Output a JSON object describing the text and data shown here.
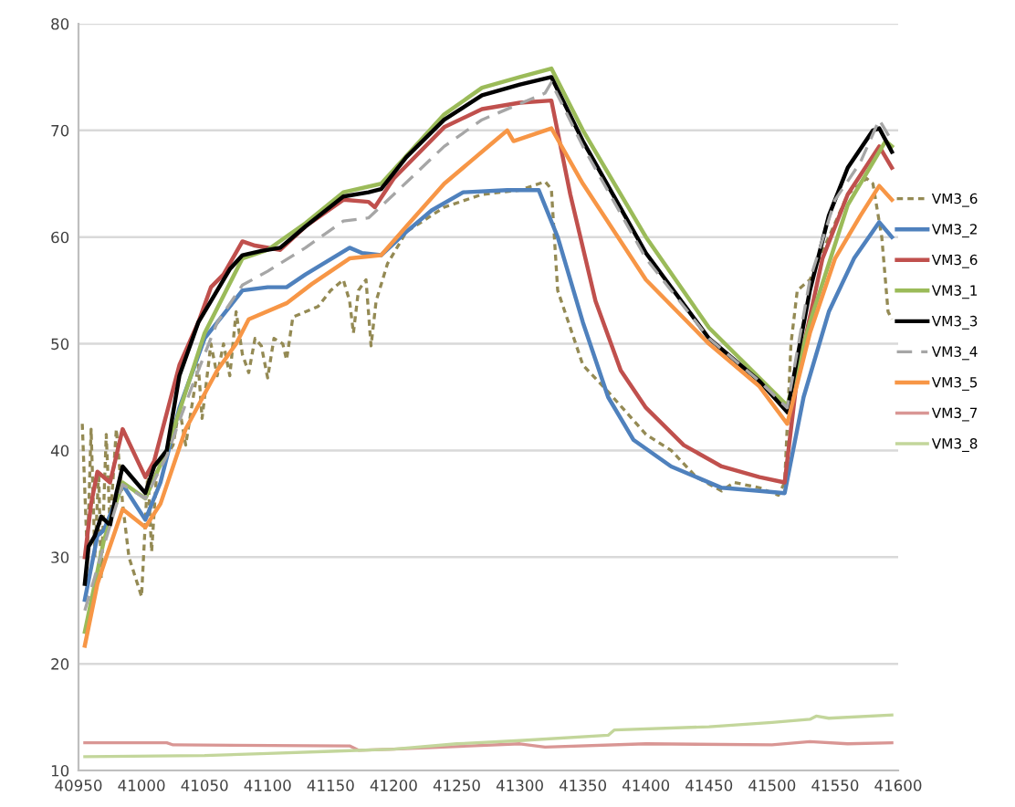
{
  "chart_data": {
    "type": "line",
    "xlim": [
      40950,
      41600
    ],
    "xticks": [
      40950,
      41000,
      41050,
      41100,
      41150,
      41200,
      41250,
      41300,
      41350,
      41400,
      41450,
      41500,
      41550,
      41600
    ],
    "ylim": [
      10,
      80
    ],
    "yticks": [
      10,
      20,
      30,
      40,
      50,
      60,
      70,
      80
    ],
    "grid": "y",
    "legend": "right",
    "marker": "none",
    "series": [
      {
        "name": "VM3_6",
        "color": "#948a54",
        "line_style": "dotted",
        "x": [
          40953,
          40957,
          40960,
          40963,
          40966,
          40968,
          40972,
          40975,
          40980,
          40985,
          40990,
          41000,
          41005,
          41008,
          41012,
          41025,
          41030,
          41035,
          41045,
          41048,
          41055,
          41060,
          41065,
          41070,
          41075,
          41080,
          41085,
          41090,
          41095,
          41100,
          41105,
          41112,
          41115,
          41120,
          41130,
          41140,
          41150,
          41160,
          41165,
          41168,
          41172,
          41178,
          41182,
          41186,
          41195,
          41210,
          41240,
          41270,
          41300,
          41320,
          41325,
          41330,
          41350,
          41370,
          41400,
          41420,
          41440,
          41460,
          41470,
          41490,
          41505,
          41510,
          41515,
          41520,
          41530,
          41545,
          41560,
          41575,
          41580,
          41587,
          41592,
          41595
        ],
        "values": [
          42.5,
          30,
          42,
          30,
          38,
          28,
          41.5,
          33,
          42,
          35,
          30,
          26.3,
          38,
          30.5,
          38,
          40.5,
          44,
          40.5,
          48,
          43,
          50,
          47,
          50,
          47,
          53,
          49,
          47.3,
          50.5,
          49.8,
          46.8,
          50.5,
          50,
          48.5,
          52.5,
          53,
          53.5,
          55,
          56,
          54,
          51,
          55,
          56,
          49.8,
          54,
          57.5,
          60.5,
          62.8,
          64,
          64.4,
          65.2,
          64.5,
          55,
          48,
          45.5,
          41.5,
          40,
          37.5,
          36.2,
          37,
          36.5,
          35.8,
          37,
          50,
          55,
          56,
          60,
          64,
          65.5,
          65,
          60,
          53,
          52.3
        ]
      },
      {
        "name": "VM3_2",
        "color": "#4f81bd",
        "x": [
          40955,
          40965,
          40970,
          40985,
          41003,
          41015,
          41030,
          41050,
          41060,
          41080,
          41100,
          41115,
          41130,
          41165,
          41175,
          41190,
          41210,
          41230,
          41255,
          41290,
          41315,
          41330,
          41350,
          41370,
          41390,
          41420,
          41460,
          41490,
          41510,
          41525,
          41545,
          41565,
          41585,
          41595
        ],
        "values": [
          26,
          32,
          32.5,
          36.8,
          33.5,
          37,
          44,
          50.5,
          52,
          55,
          55.3,
          55.3,
          56.5,
          59,
          58.5,
          58.3,
          60.5,
          62.5,
          64.2,
          64.4,
          64.4,
          60,
          52,
          45,
          41,
          38.5,
          36.5,
          36.2,
          36,
          45,
          53,
          58,
          61.4,
          60
        ]
      },
      {
        "name": "VM3_6",
        "color": "#c0504d",
        "x": [
          40955,
          40960,
          40965,
          40975,
          40985,
          41003,
          41010,
          41030,
          41045,
          41055,
          41065,
          41080,
          41090,
          41110,
          41130,
          41160,
          41180,
          41185,
          41200,
          41240,
          41270,
          41300,
          41325,
          41340,
          41360,
          41380,
          41400,
          41430,
          41460,
          41490,
          41510,
          41520,
          41540,
          41560,
          41585,
          41595
        ],
        "values": [
          30,
          35,
          38,
          37,
          42,
          37.5,
          39,
          48,
          52,
          55.3,
          56.5,
          59.6,
          59.2,
          58.8,
          61,
          63.5,
          63.3,
          62.8,
          65.5,
          70.3,
          72,
          72.6,
          72.8,
          64,
          54,
          47.5,
          44,
          40.5,
          38.5,
          37.5,
          37,
          47,
          58,
          64,
          68.5,
          66.5
        ]
      },
      {
        "name": "VM3_1",
        "color": "#9bbb59",
        "x": [
          40955,
          40970,
          40985,
          41003,
          41020,
          41050,
          41080,
          41100,
          41130,
          41160,
          41190,
          41240,
          41270,
          41300,
          41325,
          41350,
          41400,
          41450,
          41512,
          41530,
          41560,
          41590,
          41595
        ],
        "values": [
          23,
          31.5,
          37,
          35.5,
          40,
          51,
          58,
          58.8,
          61.3,
          64.2,
          65,
          71.5,
          74,
          75,
          75.8,
          70,
          60,
          51.5,
          44.2,
          52,
          63,
          69,
          68.5
        ]
      },
      {
        "name": "VM3_3",
        "color": "#000000",
        "x": [
          40955,
          40958,
          40963,
          40968,
          40975,
          40980,
          40985,
          41003,
          41010,
          41020,
          41030,
          41045,
          41055,
          41070,
          41080,
          41095,
          41110,
          41120,
          41130,
          41160,
          41180,
          41190,
          41210,
          41240,
          41270,
          41300,
          41325,
          41350,
          41400,
          41450,
          41490,
          41512,
          41530,
          41545,
          41560,
          41580,
          41585,
          41595
        ],
        "values": [
          27.5,
          31,
          32,
          33.8,
          33,
          36,
          38.5,
          36,
          38.5,
          40,
          47,
          52,
          54,
          57,
          58.3,
          58.7,
          59,
          60,
          61,
          63.8,
          64.2,
          64.5,
          67.5,
          71,
          73.3,
          74.3,
          75,
          69,
          58.5,
          50.5,
          46.5,
          43.6,
          55,
          62,
          66.5,
          70,
          70.2,
          68
        ]
      },
      {
        "name": "VM3_4",
        "color": "#a6a6a6",
        "line_style": "dashed",
        "x": [
          40955,
          40970,
          40985,
          41003,
          41020,
          41040,
          41060,
          41080,
          41100,
          41130,
          41160,
          41180,
          41200,
          41240,
          41270,
          41300,
          41320,
          41325,
          41350,
          41400,
          41450,
          41490,
          41512,
          41530,
          41550,
          41570,
          41585,
          41595
        ],
        "values": [
          25,
          31,
          36.8,
          35.5,
          39.5,
          46,
          52,
          55.5,
          56.8,
          59,
          61.5,
          61.8,
          64,
          68.5,
          71,
          72.5,
          73.5,
          74.5,
          68.5,
          58,
          50.5,
          46.5,
          44,
          56,
          63.5,
          67,
          71,
          69
        ]
      },
      {
        "name": "VM3_5",
        "color": "#f79646",
        "x": [
          40955,
          40965,
          40972,
          40985,
          41003,
          41015,
          41035,
          41060,
          41075,
          41085,
          41115,
          41135,
          41165,
          41190,
          41210,
          41240,
          41260,
          41280,
          41290,
          41295,
          41325,
          41350,
          41400,
          41450,
          41490,
          41512,
          41530,
          41550,
          41570,
          41585,
          41595
        ],
        "values": [
          21.7,
          27.5,
          30,
          34.5,
          32.8,
          35,
          42,
          47.5,
          50,
          52.3,
          53.8,
          55.6,
          58,
          58.3,
          61,
          65,
          67,
          69,
          70,
          69,
          70.2,
          65,
          56,
          50,
          46,
          42.5,
          51,
          58,
          62,
          64.8,
          63.5
        ]
      },
      {
        "name": "VM3_7",
        "color": "#d99694",
        "x": [
          40955,
          41020,
          41025,
          41165,
          41172,
          41200,
          41260,
          41300,
          41320,
          41400,
          41500,
          41530,
          41560,
          41595
        ],
        "values": [
          12.6,
          12.6,
          12.4,
          12.3,
          11.9,
          12.0,
          12.3,
          12.5,
          12.2,
          12.5,
          12.4,
          12.7,
          12.5,
          12.6
        ]
      },
      {
        "name": "VM3_8",
        "color": "#c3d69b",
        "x": [
          40955,
          41050,
          41100,
          41150,
          41200,
          41250,
          41300,
          41370,
          41375,
          41450,
          41500,
          41530,
          41535,
          41545,
          41595
        ],
        "values": [
          11.3,
          11.4,
          11.6,
          11.8,
          12.0,
          12.5,
          12.8,
          13.3,
          13.8,
          14.1,
          14.5,
          14.8,
          15.1,
          14.9,
          15.2
        ]
      }
    ]
  }
}
